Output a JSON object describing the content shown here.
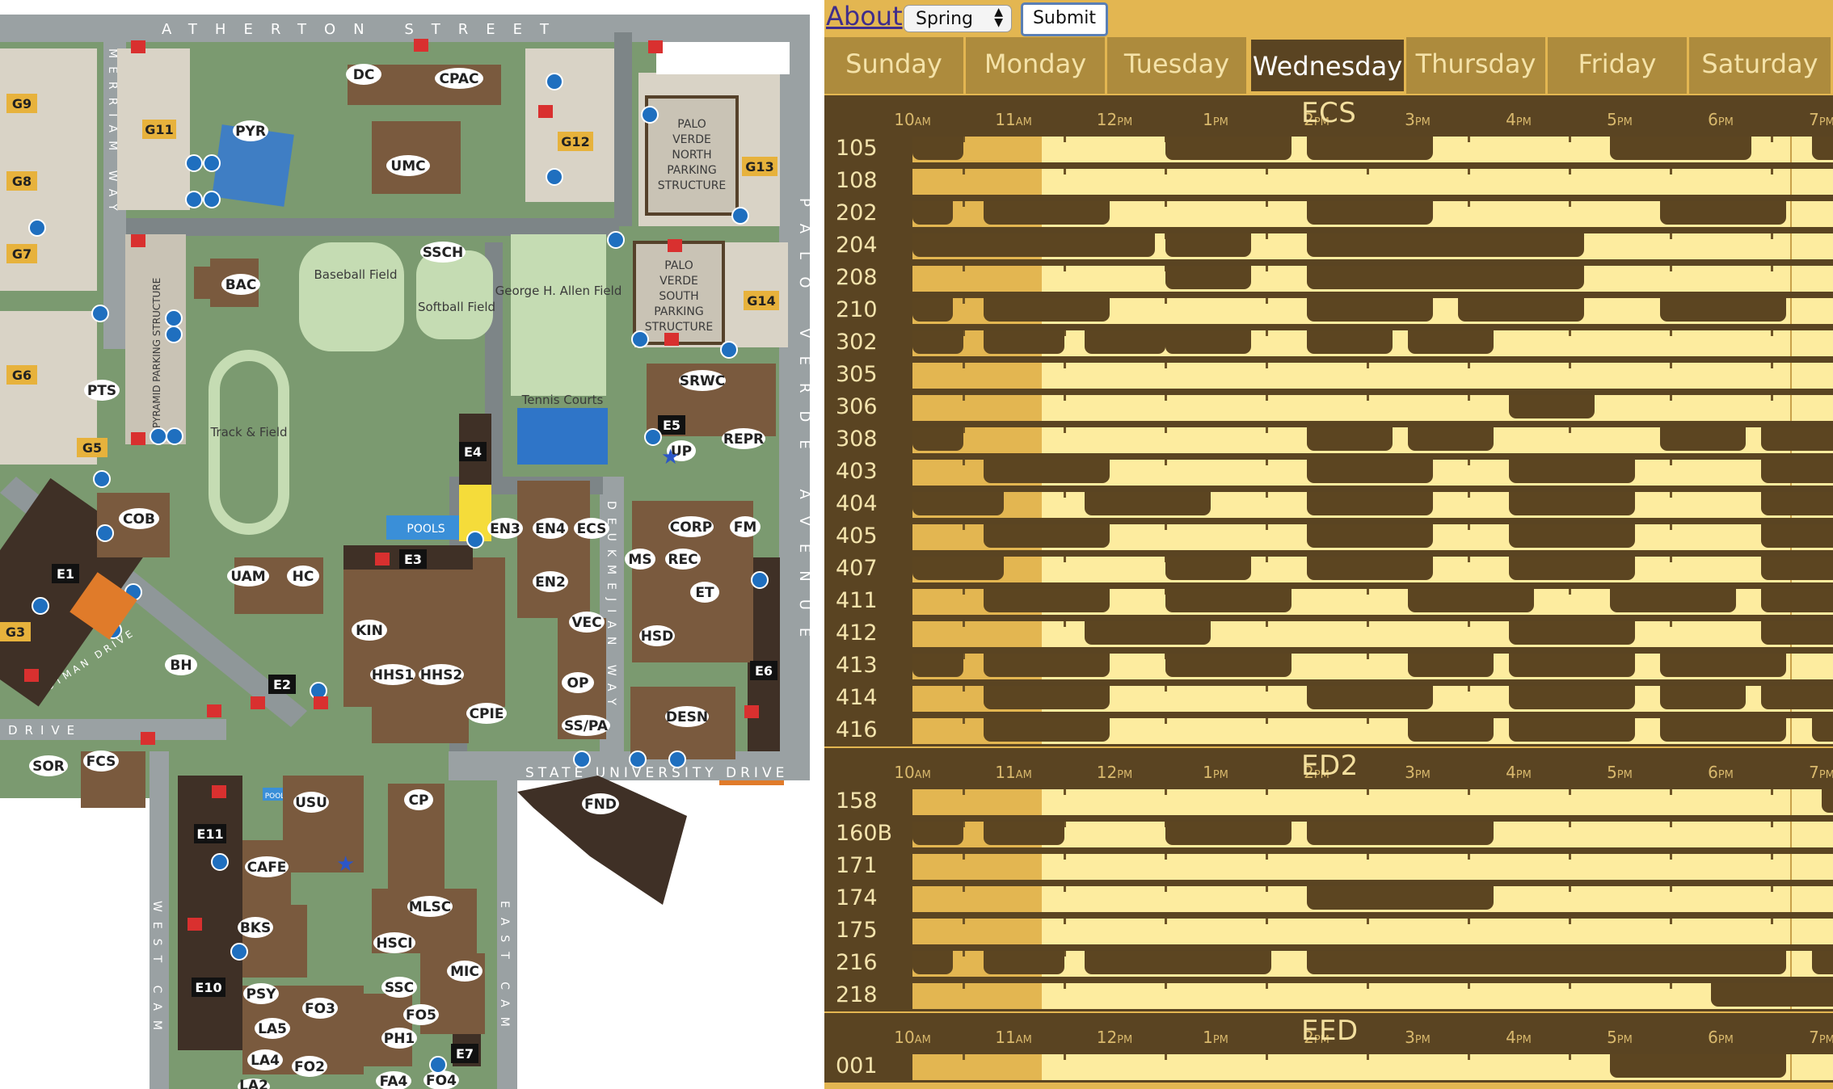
{
  "map": {
    "streets": {
      "north": "ATHERTON STREET",
      "west": "MERRIAM WAY",
      "east": "PALO VERDE AVENUE",
      "mid": "DEUKMEJIAN WAY",
      "south": "STATE UNIVERSITY DRIVE",
      "sw": "BEOTMAN DRIVE",
      "westcam": "WEST CAM",
      "eastcam": "EAST CAM",
      "drive": "DRIVE"
    },
    "buildings": [
      "DC",
      "CPAC",
      "PYR",
      "UMC",
      "SSCH",
      "BAC",
      "PTS",
      "COB",
      "UAM",
      "HC",
      "BH",
      "KIN",
      "HHS1",
      "HHS2",
      "EN3",
      "EN4",
      "ECS",
      "EN2",
      "VEC",
      "MS",
      "REC",
      "CORP",
      "FM",
      "SRWC",
      "REPR",
      "UP",
      "ET",
      "HSD",
      "DESN",
      "OP",
      "SS/PA",
      "CPIE",
      "SOR",
      "FCS",
      "USU",
      "CP",
      "FND",
      "CAFE",
      "BKS",
      "MLSC",
      "HSCI",
      "MIC",
      "SSC",
      "PSY",
      "FO3",
      "FO5",
      "LA5",
      "PH1",
      "LA4",
      "FO2",
      "FA4",
      "FO4",
      "LA2"
    ],
    "parking": [
      "G9",
      "G11",
      "G8",
      "G7",
      "G6",
      "G5",
      "G3",
      "G12",
      "G13",
      "G14",
      "E1",
      "E2",
      "E3",
      "E4",
      "E5",
      "E6",
      "E7",
      "E10",
      "E11"
    ],
    "areas": {
      "baseball": "Baseball Field",
      "softball": "Softball Field",
      "allen": "George H. Allen Field",
      "track": "Track & Field",
      "tennis": "Tennis Courts",
      "pools": "POOLS",
      "pool": "POOL",
      "pyramid": "PYRAMID PARKING STRUCTURE",
      "pvn": "PALO VERDE NORTH PARKING STRUCTURE",
      "pvs": "PALO VERDE SOUTH PARKING STRUCTURE"
    }
  },
  "schedule": {
    "about": "About",
    "season": "Spring",
    "submit": "Submit",
    "days": [
      "Sunday",
      "Monday",
      "Tuesday",
      "Wednesday",
      "Thursday",
      "Friday",
      "Saturday"
    ],
    "active_day": "Wednesday",
    "hours": [
      [
        "10",
        "AM"
      ],
      [
        "11",
        "AM"
      ],
      [
        "12",
        "PM"
      ],
      [
        "1",
        "PM"
      ],
      [
        "2",
        "PM"
      ],
      [
        "3",
        "PM"
      ],
      [
        "4",
        "PM"
      ],
      [
        "5",
        "PM"
      ],
      [
        "6",
        "PM"
      ],
      [
        "7",
        "PM"
      ]
    ],
    "buildings": [
      {
        "name": "ECS",
        "rooms": [
          {
            "room": "105",
            "busy": [
              [
                10,
                10.5
              ],
              [
                12.5,
                13.75
              ],
              [
                13.9,
                15.15
              ],
              [
                16.9,
                18.3
              ],
              [
                18.9,
                19.4
              ]
            ]
          },
          {
            "room": "108",
            "busy": []
          },
          {
            "room": "202",
            "busy": [
              [
                10,
                10.4
              ],
              [
                10.7,
                11.95
              ],
              [
                13.9,
                15.15
              ],
              [
                17.4,
                18.65
              ]
            ]
          },
          {
            "room": "204",
            "busy": [
              [
                10,
                12.4
              ],
              [
                12.5,
                13.35
              ],
              [
                13.9,
                16.65
              ]
            ]
          },
          {
            "room": "208",
            "busy": [
              [
                12.5,
                13.35
              ],
              [
                13.9,
                16.65
              ]
            ]
          },
          {
            "room": "210",
            "busy": [
              [
                10,
                10.4
              ],
              [
                10.7,
                11.95
              ],
              [
                13.9,
                15.15
              ],
              [
                15.4,
                16.65
              ],
              [
                17.4,
                18.65
              ]
            ]
          },
          {
            "room": "302",
            "busy": [
              [
                10,
                10.5
              ],
              [
                10.7,
                11.5
              ],
              [
                11.7,
                12.5
              ],
              [
                12.5,
                13.35
              ],
              [
                13.9,
                14.75
              ],
              [
                14.9,
                15.75
              ]
            ]
          },
          {
            "room": "305",
            "busy": []
          },
          {
            "room": "306",
            "busy": [
              [
                15.9,
                16.75
              ]
            ]
          },
          {
            "room": "308",
            "busy": [
              [
                10,
                10.5
              ],
              [
                13.9,
                14.75
              ],
              [
                14.9,
                15.75
              ],
              [
                17.4,
                18.25
              ],
              [
                18.4,
                19.25
              ]
            ]
          },
          {
            "room": "403",
            "busy": [
              [
                10.7,
                11.95
              ],
              [
                13.9,
                15.15
              ],
              [
                15.9,
                17.15
              ],
              [
                18.4,
                19.4
              ]
            ]
          },
          {
            "room": "404",
            "busy": [
              [
                10,
                10.9
              ],
              [
                11.7,
                12.95
              ],
              [
                13.9,
                15.15
              ],
              [
                15.9,
                17.15
              ],
              [
                18.4,
                19.4
              ]
            ]
          },
          {
            "room": "405",
            "busy": [
              [
                10.7,
                11.95
              ],
              [
                13.9,
                15.15
              ],
              [
                15.9,
                17.15
              ],
              [
                18.4,
                19.4
              ]
            ]
          },
          {
            "room": "407",
            "busy": [
              [
                10,
                10.9
              ],
              [
                12.5,
                13.35
              ],
              [
                13.9,
                15.15
              ],
              [
                15.9,
                17.15
              ],
              [
                18.4,
                19.4
              ]
            ]
          },
          {
            "room": "411",
            "busy": [
              [
                10.7,
                11.95
              ],
              [
                12.5,
                13.75
              ],
              [
                14.9,
                16.15
              ],
              [
                16.9,
                18.15
              ],
              [
                18.4,
                19.4
              ]
            ]
          },
          {
            "room": "412",
            "busy": [
              [
                11.7,
                12.95
              ],
              [
                15.9,
                17.15
              ],
              [
                18.4,
                19.4
              ]
            ]
          },
          {
            "room": "413",
            "busy": [
              [
                10,
                10.5
              ],
              [
                10.7,
                11.95
              ],
              [
                12.5,
                13.75
              ],
              [
                14.9,
                15.75
              ],
              [
                15.9,
                17.15
              ],
              [
                17.4,
                18.65
              ]
            ]
          },
          {
            "room": "414",
            "busy": [
              [
                10.7,
                11.95
              ],
              [
                13.9,
                15.15
              ],
              [
                15.9,
                17.15
              ],
              [
                17.4,
                18.25
              ],
              [
                18.4,
                19.4
              ]
            ]
          },
          {
            "room": "416",
            "busy": [
              [
                10.7,
                11.95
              ],
              [
                14.9,
                15.75
              ],
              [
                15.9,
                17.15
              ],
              [
                17.4,
                18.65
              ],
              [
                18.9,
                19.4
              ]
            ]
          }
        ]
      },
      {
        "name": "ED2",
        "rooms": [
          {
            "room": "158",
            "busy": [
              [
                19.0,
                19.4
              ]
            ]
          },
          {
            "room": "160B",
            "busy": [
              [
                10,
                10.5
              ],
              [
                10.7,
                11.5
              ],
              [
                12.5,
                13.75
              ],
              [
                13.9,
                15.75
              ]
            ]
          },
          {
            "room": "171",
            "busy": []
          },
          {
            "room": "174",
            "busy": [
              [
                13.9,
                15.75
              ]
            ]
          },
          {
            "room": "175",
            "busy": []
          },
          {
            "room": "216",
            "busy": [
              [
                10,
                10.4
              ],
              [
                10.7,
                11.5
              ],
              [
                11.7,
                13.55
              ],
              [
                13.9,
                18.65
              ],
              [
                18.9,
                19.4
              ]
            ]
          },
          {
            "room": "218",
            "busy": [
              [
                17.9,
                19.4
              ]
            ]
          }
        ]
      },
      {
        "name": "EED",
        "rooms": [
          {
            "room": "001",
            "busy": [
              [
                16.9,
                18.65
              ]
            ]
          }
        ]
      }
    ]
  }
}
